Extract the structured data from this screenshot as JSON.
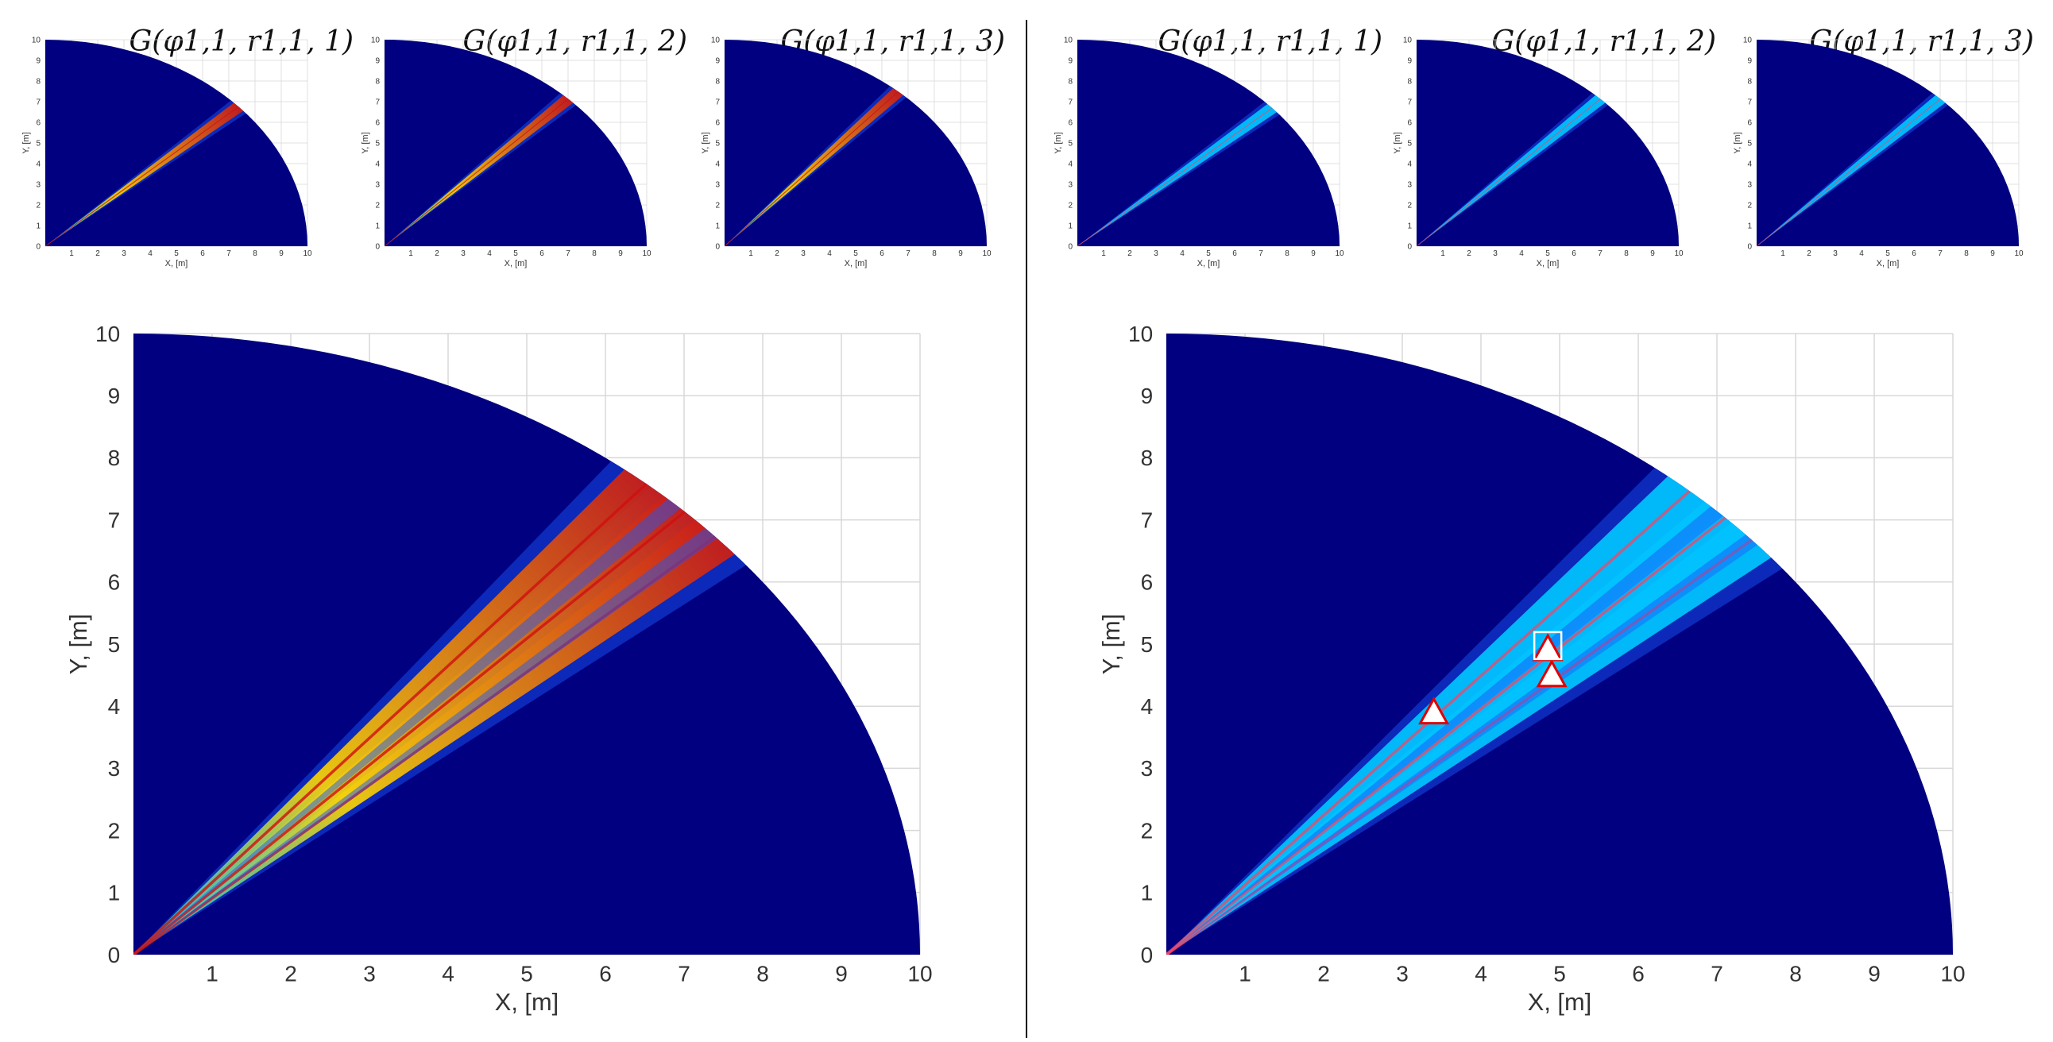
{
  "colors": {
    "background": "#000080",
    "beam_mid": "#00c8ff",
    "beam_hot": "#ffd800",
    "beam_peak": "#d01010",
    "grid": "#d8d8d8",
    "divider": "#000000",
    "marker_fill": "#ffffff",
    "marker_stroke": "#e00000"
  },
  "chart_data": [
    {
      "type": "heatmap",
      "panel": "left-small-1",
      "title": "G(φ1,1, r1,1, 1)",
      "xlabel": "X, [m]",
      "ylabel": "Y, [m]",
      "xlim": [
        0,
        10
      ],
      "ylim": [
        0,
        10
      ],
      "xticks": [
        "1",
        "2",
        "3",
        "4",
        "5",
        "6",
        "7",
        "8",
        "9",
        "10"
      ],
      "yticks": [
        "0",
        "1",
        "2",
        "3",
        "4",
        "5",
        "6",
        "7",
        "8",
        "9",
        "10"
      ],
      "region": "quarter-disc radius 10",
      "beams": [
        {
          "angle_deg": 42.5,
          "peak": 0.9
        }
      ]
    },
    {
      "type": "heatmap",
      "panel": "left-small-2",
      "title": "G(φ1,1, r1,1, 2)",
      "xlabel": "X, [m]",
      "ylabel": "Y, [m]",
      "xlim": [
        0,
        10
      ],
      "ylim": [
        0,
        10
      ],
      "xticks": [
        "1",
        "2",
        "3",
        "4",
        "5",
        "6",
        "7",
        "8",
        "9",
        "10"
      ],
      "yticks": [
        "0",
        "1",
        "2",
        "3",
        "4",
        "5",
        "6",
        "7",
        "8",
        "9",
        "10"
      ],
      "region": "quarter-disc radius 10",
      "beams": [
        {
          "angle_deg": 45.5,
          "peak": 0.9
        }
      ]
    },
    {
      "type": "heatmap",
      "panel": "left-small-3",
      "title": "G(φ1,1, r1,1, 3)",
      "xlabel": "X, [m]",
      "ylabel": "Y, [m]",
      "xlim": [
        0,
        10
      ],
      "ylim": [
        0,
        10
      ],
      "xticks": [
        "1",
        "2",
        "3",
        "4",
        "5",
        "6",
        "7",
        "8",
        "9",
        "10"
      ],
      "yticks": [
        "0",
        "1",
        "2",
        "3",
        "4",
        "5",
        "6",
        "7",
        "8",
        "9",
        "10"
      ],
      "region": "quarter-disc radius 10",
      "beams": [
        {
          "angle_deg": 48.5,
          "peak": 0.9
        }
      ]
    },
    {
      "type": "heatmap",
      "panel": "right-small-1",
      "title": "G(φ1,1, r1,1, 1)",
      "xlabel": "X, [m]",
      "ylabel": "Y, [m]",
      "xlim": [
        0,
        10
      ],
      "ylim": [
        0,
        10
      ],
      "xticks": [
        "1",
        "2",
        "3",
        "4",
        "5",
        "6",
        "7",
        "8",
        "9",
        "10"
      ],
      "yticks": [
        "0",
        "1",
        "2",
        "3",
        "4",
        "5",
        "6",
        "7",
        "8",
        "9",
        "10"
      ],
      "region": "quarter-disc radius 10",
      "beams": [
        {
          "angle_deg": 42,
          "peak": 0.6
        }
      ]
    },
    {
      "type": "heatmap",
      "panel": "right-small-2",
      "title": "G(φ1,1, r1,1, 2)",
      "xlabel": "X, [m]",
      "ylabel": "Y, [m]",
      "xlim": [
        0,
        10
      ],
      "ylim": [
        0,
        10
      ],
      "xticks": [
        "1",
        "2",
        "3",
        "4",
        "5",
        "6",
        "7",
        "8",
        "9",
        "10"
      ],
      "yticks": [
        "0",
        "1",
        "2",
        "3",
        "4",
        "5",
        "6",
        "7",
        "8",
        "9",
        "10"
      ],
      "region": "quarter-disc radius 10",
      "beams": [
        {
          "angle_deg": 45.5,
          "peak": 0.6
        }
      ]
    },
    {
      "type": "heatmap",
      "panel": "right-small-3",
      "title": "G(φ1,1, r1,1, 3)",
      "xlabel": "X, [m]",
      "ylabel": "Y, [m]",
      "xlim": [
        0,
        10
      ],
      "ylim": [
        0,
        10
      ],
      "xticks": [
        "1",
        "2",
        "3",
        "4",
        "5",
        "6",
        "7",
        "8",
        "9",
        "10"
      ],
      "yticks": [
        "0",
        "1",
        "2",
        "3",
        "4",
        "5",
        "6",
        "7",
        "8",
        "9",
        "10"
      ],
      "region": "quarter-disc radius 10",
      "beams": [
        {
          "angle_deg": 45.5,
          "peak": 0.6
        }
      ]
    },
    {
      "type": "heatmap",
      "panel": "left-large",
      "title": "",
      "xlabel": "X, [m]",
      "ylabel": "Y, [m]",
      "xlim": [
        0,
        10
      ],
      "ylim": [
        0,
        10
      ],
      "xticks": [
        "1",
        "2",
        "3",
        "4",
        "5",
        "6",
        "7",
        "8",
        "9",
        "10"
      ],
      "yticks": [
        "0",
        "1",
        "2",
        "3",
        "4",
        "5",
        "6",
        "7",
        "8",
        "9",
        "10"
      ],
      "region": "quarter-disc radius 10",
      "beams": [
        {
          "angle_deg": 42.3,
          "peak": 0.95
        },
        {
          "angle_deg": 45.5,
          "peak": 1.0
        },
        {
          "angle_deg": 49.3,
          "peak": 0.95
        }
      ]
    },
    {
      "type": "heatmap",
      "panel": "right-large",
      "title": "",
      "xlabel": "X, [m]",
      "ylabel": "Y, [m]",
      "xlim": [
        0,
        10
      ],
      "ylim": [
        0,
        10
      ],
      "xticks": [
        "1",
        "2",
        "3",
        "4",
        "5",
        "6",
        "7",
        "8",
        "9",
        "10"
      ],
      "yticks": [
        "0",
        "1",
        "2",
        "3",
        "4",
        "5",
        "6",
        "7",
        "8",
        "9",
        "10"
      ],
      "region": "quarter-disc radius 10",
      "beams": [
        {
          "angle_deg": 41.9,
          "peak": 0.75
        },
        {
          "angle_deg": 44.7,
          "peak": 0.75
        },
        {
          "angle_deg": 48.3,
          "peak": 0.75
        }
      ],
      "markers": [
        {
          "shape": "triangle",
          "x": 3.4,
          "y": 3.9
        },
        {
          "shape": "triangle",
          "x": 4.9,
          "y": 4.5
        },
        {
          "shape": "triangle",
          "x": 4.85,
          "y": 4.92
        },
        {
          "shape": "square",
          "x": 4.85,
          "y": 4.95
        }
      ]
    }
  ]
}
